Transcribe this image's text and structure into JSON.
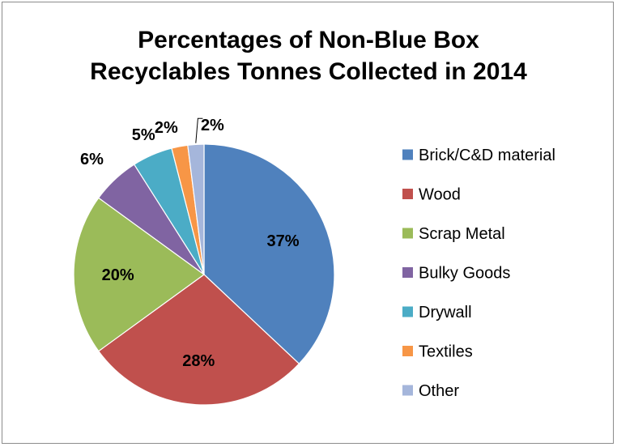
{
  "chart_data": {
    "type": "pie",
    "title": "Percentages of Non-Blue Box Recyclables Tonnes Collected in 2014",
    "title_lines": [
      "Percentages of Non-Blue Box",
      "Recyclables Tonnes Collected in 2014"
    ],
    "slices": [
      {
        "label": "Brick/C&D material",
        "value": 37,
        "display": "37%",
        "color": "#4f81bd"
      },
      {
        "label": "Wood",
        "value": 28,
        "display": "28%",
        "color": "#c0504d"
      },
      {
        "label": "Scrap Metal",
        "value": 20,
        "display": "20%",
        "color": "#9bbb59"
      },
      {
        "label": "Bulky Goods",
        "value": 6,
        "display": "6%",
        "color": "#8064a2"
      },
      {
        "label": "Drywall",
        "value": 5,
        "display": "5%",
        "color": "#4bacc6"
      },
      {
        "label": "Textiles",
        "value": 2,
        "display": "2%",
        "color": "#f79646"
      },
      {
        "label": "Other",
        "value": 2,
        "display": "2%",
        "color": "#a5b6db"
      }
    ],
    "legend_position": "right",
    "start": "top, clockwise"
  }
}
